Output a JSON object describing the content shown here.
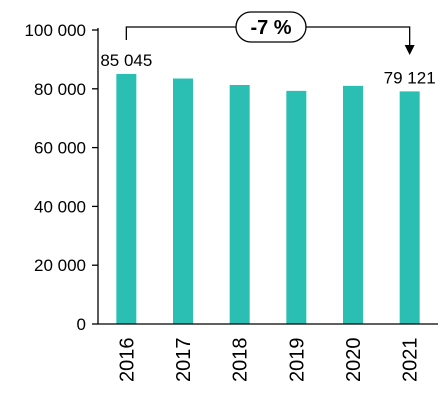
{
  "chart_data": {
    "type": "bar",
    "categories": [
      "2016",
      "2017",
      "2018",
      "2019",
      "2020",
      "2021"
    ],
    "values": [
      85045,
      83500,
      81300,
      79300,
      81000,
      79121
    ],
    "ylim": [
      0,
      100000
    ],
    "yticks": [
      0,
      20000,
      40000,
      60000,
      80000,
      100000
    ],
    "ytick_labels": [
      "0",
      "20 000",
      "40 000",
      "60 000",
      "80 000",
      "100 000"
    ],
    "data_labels": [
      {
        "category": "2016",
        "text": "85 045"
      },
      {
        "category": "2021",
        "text": "79 121"
      }
    ],
    "change_annotation": {
      "from": "2016",
      "to": "2021",
      "text": "-7 %"
    },
    "bar_color": "#2bbfb3",
    "grid": false,
    "legend": "none"
  }
}
